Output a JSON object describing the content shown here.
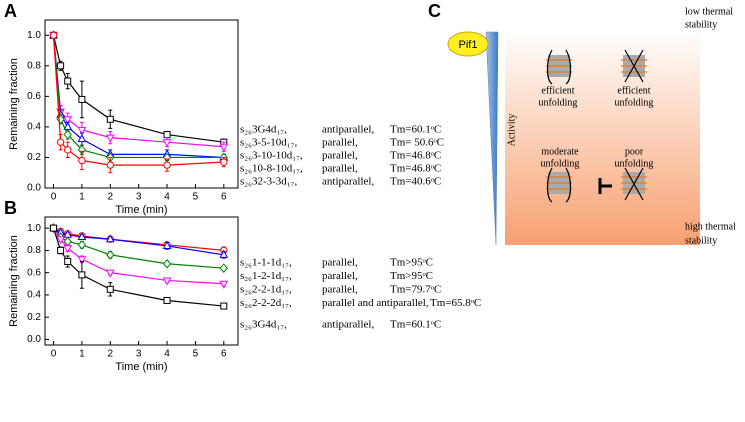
{
  "chart_data": [
    {
      "type": "line",
      "panel": "A",
      "x_label": "Time (min)",
      "y_label": "Remaining fraction",
      "x": [
        0,
        0.25,
        0.5,
        1,
        2,
        4,
        6
      ],
      "xlim": [
        -0.3,
        6.5
      ],
      "xticks": [
        0,
        1,
        2,
        3,
        4,
        5,
        6
      ],
      "ylim": [
        0,
        1.1
      ],
      "yticks": [
        {
          "value": 0,
          "label": "0.0"
        },
        {
          "value": 0.2,
          "label": "0.2"
        },
        {
          "value": 0.4,
          "label": "0.4"
        },
        {
          "value": 0.6,
          "label": "0.6"
        },
        {
          "value": 0.8,
          "label": "0.8"
        },
        {
          "value": 1,
          "label": "1.0"
        }
      ],
      "series": [
        {
          "name": "s₂₆3G4d₁₇,",
          "structure": "antiparallel,",
          "tm": "Tm=60.1ᵒC",
          "color": "#000000",
          "marker": "square",
          "values": [
            1,
            0.8,
            0.7,
            0.58,
            0.45,
            0.35,
            0.3
          ],
          "errors": [
            0,
            0.03,
            0.05,
            0.12,
            0.06,
            0.02,
            0.02
          ]
        },
        {
          "name": "s₂₆3-5-10d₁₇,",
          "structure": "parallel,",
          "tm": "Tm= 50.6ᵒC",
          "color": "#ff00ff",
          "marker": "tri-down",
          "values": [
            1,
            0.5,
            0.45,
            0.38,
            0.33,
            0.3,
            0.27
          ],
          "errors": [
            0,
            0.04,
            0.04,
            0.05,
            0.04,
            0.03,
            0.03
          ]
        },
        {
          "name": "s₂₆3-10-10d₁₇,",
          "structure": "parallel,",
          "tm": "Tm=46.8ᵒC",
          "color": "#0000ff",
          "marker": "tri-up",
          "values": [
            1,
            0.48,
            0.4,
            0.32,
            0.22,
            0.22,
            0.2
          ],
          "errors": [
            0,
            0.03,
            0.03,
            0.04,
            0.03,
            0.03,
            0.02
          ]
        },
        {
          "name": "s₂₆10-8-10d₁₇,",
          "structure": "parallel,",
          "tm": "Tm=46.8ᵒC",
          "color": "#008000",
          "marker": "diamond",
          "values": [
            1,
            0.45,
            0.35,
            0.25,
            0.2,
            0.2,
            0.2
          ],
          "errors": [
            0,
            0.03,
            0.03,
            0.03,
            0.03,
            0.02,
            0.02
          ]
        },
        {
          "name": "s₂₆32-3-3d₁₇,",
          "structure": "antiparallel,",
          "tm": "Tm=40.6ᵒC",
          "color": "#ff0000",
          "marker": "circle",
          "values": [
            1,
            0.3,
            0.25,
            0.18,
            0.15,
            0.15,
            0.17
          ],
          "errors": [
            0,
            0.05,
            0.05,
            0.06,
            0.05,
            0.04,
            0.03
          ]
        }
      ]
    },
    {
      "type": "line",
      "panel": "B",
      "x_label": "Time (min)",
      "y_label": "Remaining fraction",
      "x": [
        0,
        0.25,
        0.5,
        1,
        2,
        4,
        6
      ],
      "xlim": [
        -0.3,
        6.5
      ],
      "xticks": [
        0,
        1,
        2,
        3,
        4,
        5,
        6
      ],
      "ylim": [
        -0.05,
        1.1
      ],
      "yticks": [
        {
          "value": 0,
          "label": "0.0"
        },
        {
          "value": 0.2,
          "label": "0.2"
        },
        {
          "value": 0.4,
          "label": "0.4"
        },
        {
          "value": 0.6,
          "label": "0.6"
        },
        {
          "value": 0.8,
          "label": "0.8"
        },
        {
          "value": 1,
          "label": "1.0"
        }
      ],
      "series": [
        {
          "name": "s₂₆1-1-1d₁₇,",
          "structure": "parallel,",
          "tm": "Tm>95ᵒC",
          "color": "#ff0000",
          "marker": "circle",
          "values": [
            1,
            0.97,
            0.95,
            0.93,
            0.9,
            0.85,
            0.8
          ],
          "errors": [
            0,
            0.02,
            0.02,
            0.02,
            0.02,
            0.02,
            0.03
          ]
        },
        {
          "name": "s₂₆1-2-1d₁₇,",
          "structure": "parallel,",
          "tm": "Tm>95ᵒC",
          "color": "#0000ff",
          "marker": "tri-up",
          "values": [
            1,
            0.96,
            0.94,
            0.92,
            0.9,
            0.84,
            0.76
          ],
          "errors": [
            0,
            0.02,
            0.02,
            0.02,
            0.02,
            0.03,
            0.03
          ]
        },
        {
          "name": "s₂₆2-2-1d₁₇,",
          "structure": "parallel,",
          "tm": "Tm=79.7ᵒC",
          "color": "#008000",
          "marker": "diamond",
          "values": [
            1,
            0.92,
            0.88,
            0.85,
            0.76,
            0.68,
            0.64
          ],
          "errors": [
            0,
            0.02,
            0.02,
            0.03,
            0.03,
            0.02,
            0.02
          ]
        },
        {
          "name": "s₂₆2-2-2d₁₇,",
          "structure": "parallel and antiparallel,",
          "tm": "Tm=65.8ᵒC",
          "color": "#ff00ff",
          "marker": "tri-down",
          "values": [
            1,
            0.9,
            0.82,
            0.72,
            0.6,
            0.53,
            0.5
          ],
          "errors": [
            0,
            0.02,
            0.03,
            0.03,
            0.02,
            0.02,
            0.02
          ]
        },
        {
          "name": "s₂₆3G4d₁₇,",
          "structure": "antiparallel,",
          "tm": "Tm=60.1ᵒC",
          "color": "#000000",
          "marker": "square",
          "values": [
            1,
            0.8,
            0.7,
            0.58,
            0.45,
            0.35,
            0.3
          ],
          "errors": [
            0,
            0.03,
            0.05,
            0.12,
            0.06,
            0.02,
            0.02
          ]
        }
      ]
    }
  ],
  "panel_c": {
    "label": "C",
    "enzyme": "Pif1",
    "axis": "Activity",
    "top": [
      "low thermal",
      "stability"
    ],
    "bottom": [
      "high thermal",
      "stability"
    ],
    "states": [
      [
        "efficient",
        "unfolding"
      ],
      [
        "efficient",
        "unfolding"
      ],
      [
        "moderate",
        "unfolding"
      ],
      [
        "poor",
        "unfolding"
      ]
    ]
  }
}
